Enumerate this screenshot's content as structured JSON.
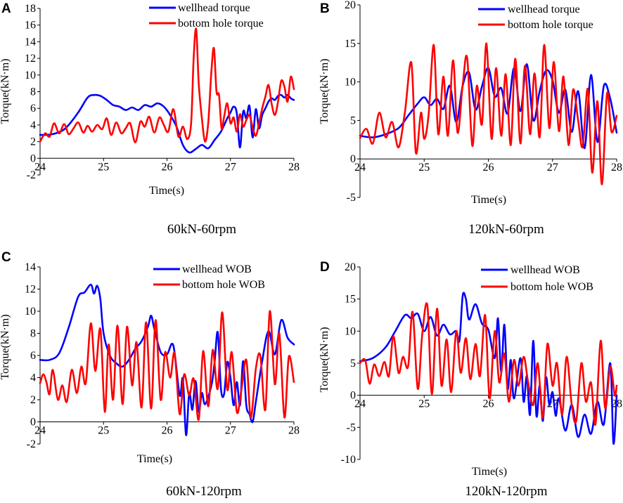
{
  "colors": {
    "series1": "#0000ff",
    "series2": "#ff0000",
    "axis": "#000000"
  },
  "chart_data": [
    {
      "panel": "A",
      "type": "line",
      "caption": "60kN-60rpm",
      "xlabel": "Time(s)",
      "ylabel": "Torque(kN·m)",
      "xlim": [
        24,
        28
      ],
      "ylim": [
        -2,
        18
      ],
      "xticks": [
        24,
        25,
        26,
        27,
        28
      ],
      "yticks": [
        -2,
        0,
        2,
        4,
        6,
        8,
        10,
        12,
        14,
        16,
        18
      ],
      "series": [
        {
          "name": "wellhead torque",
          "color": "#0000ff",
          "x": [
            24.0,
            24.2,
            24.4,
            24.6,
            24.75,
            24.85,
            24.95,
            25.05,
            25.15,
            25.25,
            25.35,
            25.45,
            25.55,
            25.65,
            25.75,
            25.85,
            25.95,
            26.05,
            26.15,
            26.25,
            26.35,
            26.45,
            26.55,
            26.65,
            26.75,
            26.85,
            26.95,
            27.0,
            27.05,
            27.1,
            27.15,
            27.2,
            27.25,
            27.3,
            27.35,
            27.4,
            27.45,
            27.5,
            27.55,
            27.6,
            27.65,
            27.7,
            27.75,
            27.8,
            27.85,
            27.9,
            27.95,
            28.0
          ],
          "y": [
            2.8,
            2.9,
            3.6,
            5.5,
            7.3,
            7.6,
            7.5,
            7.0,
            6.4,
            6.2,
            5.8,
            6.1,
            5.8,
            6.4,
            6.2,
            6.6,
            6.2,
            5.2,
            3.8,
            1.6,
            0.7,
            1.1,
            1.6,
            1.2,
            2.2,
            3.2,
            4.8,
            5.5,
            6.2,
            5.4,
            1.3,
            5.6,
            4.8,
            6.3,
            2.5,
            5.9,
            3.6,
            5.2,
            6.0,
            6.8,
            7.2,
            7.0,
            7.5,
            7.6,
            7.3,
            7.6,
            7.2,
            7.0
          ]
        },
        {
          "name": "bottom hole torque",
          "color": "#ff0000",
          "x": [
            24.0,
            24.08,
            24.15,
            24.22,
            24.3,
            24.38,
            24.45,
            24.52,
            24.6,
            24.68,
            24.75,
            24.82,
            24.9,
            24.98,
            25.05,
            25.12,
            25.2,
            25.28,
            25.35,
            25.42,
            25.5,
            25.58,
            25.65,
            25.72,
            25.8,
            25.88,
            25.95,
            26.02,
            26.1,
            26.18,
            26.25,
            26.32,
            26.38,
            26.42,
            26.46,
            26.5,
            26.55,
            26.6,
            26.65,
            26.7,
            26.74,
            26.78,
            26.82,
            26.86,
            26.9,
            26.95,
            27.0,
            27.05,
            27.1,
            27.15,
            27.2,
            27.25,
            27.3,
            27.35,
            27.4,
            27.45,
            27.5,
            27.55,
            27.6,
            27.65,
            27.7,
            27.75,
            27.8,
            27.85,
            27.9,
            27.95,
            28.0
          ],
          "y": [
            2.0,
            3.0,
            2.6,
            4.2,
            3.0,
            4.1,
            2.9,
            3.5,
            4.3,
            3.1,
            3.9,
            3.2,
            4.0,
            3.5,
            4.8,
            2.8,
            4.3,
            3.0,
            3.6,
            4.2,
            1.9,
            4.4,
            3.8,
            5.0,
            3.1,
            4.9,
            4.0,
            3.2,
            5.9,
            2.6,
            3.8,
            2.3,
            4.2,
            12.0,
            15.5,
            9.0,
            4.8,
            2.0,
            4.3,
            10.5,
            13.2,
            8.0,
            7.6,
            3.6,
            5.0,
            6.6,
            4.2,
            4.9,
            3.2,
            5.3,
            3.8,
            4.6,
            5.2,
            3.7,
            2.7,
            4.2,
            6.0,
            7.4,
            8.8,
            6.5,
            5.2,
            6.8,
            9.3,
            8.6,
            6.8,
            9.8,
            8.3
          ]
        }
      ]
    },
    {
      "panel": "B",
      "type": "line",
      "caption": "120kN-60rpm",
      "xlabel": "Time(s)",
      "ylabel": "Torque(kN·m)",
      "xlim": [
        24,
        28
      ],
      "ylim": [
        -5,
        20
      ],
      "xticks": [
        24,
        25,
        26,
        27,
        28
      ],
      "yticks": [
        -5,
        0,
        5,
        10,
        15,
        20
      ],
      "series": [
        {
          "name": "wellhead torque",
          "color": "#0000ff",
          "x": [
            24.0,
            24.2,
            24.4,
            24.6,
            24.75,
            24.9,
            25.0,
            25.1,
            25.2,
            25.3,
            25.4,
            25.5,
            25.6,
            25.7,
            25.8,
            25.9,
            26.0,
            26.1,
            26.2,
            26.3,
            26.4,
            26.5,
            26.6,
            26.7,
            26.8,
            26.9,
            27.0,
            27.1,
            27.2,
            27.3,
            27.4,
            27.5,
            27.6,
            27.7,
            27.8,
            27.9,
            28.0
          ],
          "y": [
            3.0,
            2.8,
            3.2,
            4.0,
            5.6,
            7.2,
            8.0,
            7.0,
            7.8,
            6.5,
            9.5,
            4.8,
            9.5,
            11.2,
            6.4,
            9.4,
            11.8,
            8.1,
            9.2,
            5.9,
            11.8,
            6.2,
            12.3,
            5.0,
            8.8,
            11.5,
            10.2,
            6.0,
            9.0,
            3.5,
            8.8,
            1.4,
            10.9,
            2.2,
            9.5,
            7.8,
            3.4
          ]
        },
        {
          "name": "bottom hole torque",
          "color": "#ff0000",
          "x": [
            24.0,
            24.1,
            24.2,
            24.3,
            24.4,
            24.5,
            24.6,
            24.7,
            24.8,
            24.87,
            24.95,
            25.0,
            25.07,
            25.15,
            25.22,
            25.3,
            25.37,
            25.45,
            25.52,
            25.6,
            25.67,
            25.75,
            25.82,
            25.9,
            25.97,
            26.05,
            26.12,
            26.2,
            26.27,
            26.35,
            26.42,
            26.5,
            26.57,
            26.65,
            26.72,
            26.8,
            26.87,
            26.95,
            27.02,
            27.1,
            27.17,
            27.25,
            27.32,
            27.4,
            27.47,
            27.55,
            27.62,
            27.7,
            27.77,
            27.85,
            27.92,
            28.0
          ],
          "y": [
            2.7,
            3.9,
            2.0,
            6.0,
            2.8,
            4.8,
            1.5,
            6.1,
            12.5,
            0.8,
            6.0,
            2.6,
            5.8,
            14.8,
            3.2,
            10.7,
            3.0,
            12.8,
            3.4,
            9.6,
            13.1,
            1.7,
            9.5,
            4.5,
            15.0,
            2.6,
            11.8,
            3.0,
            11.0,
            1.8,
            13.0,
            2.0,
            12.1,
            3.2,
            11.1,
            2.8,
            14.8,
            4.0,
            12.6,
            3.6,
            10.7,
            1.8,
            9.0,
            5.0,
            1.6,
            9.1,
            -1.8,
            7.5,
            -3.3,
            8.5,
            3.5,
            5.6
          ]
        }
      ]
    },
    {
      "panel": "C",
      "type": "line",
      "caption": "60kN-120rpm",
      "xlabel": "Time(s)",
      "ylabel": "Torque(kN·m)",
      "xlim": [
        24,
        28
      ],
      "ylim": [
        -2,
        14
      ],
      "xticks": [
        24,
        25,
        26,
        27,
        28
      ],
      "yticks": [
        -2,
        0,
        2,
        4,
        6,
        8,
        10,
        12,
        14
      ],
      "series": [
        {
          "name": "wellhead WOB",
          "color": "#0000ff",
          "x": [
            24.0,
            24.15,
            24.3,
            24.45,
            24.6,
            24.7,
            24.8,
            24.85,
            24.9,
            24.95,
            25.0,
            25.1,
            25.2,
            25.3,
            25.4,
            25.5,
            25.6,
            25.7,
            25.75,
            25.8,
            25.9,
            26.0,
            26.1,
            26.2,
            26.25,
            26.3,
            26.35,
            26.4,
            26.45,
            26.5,
            26.55,
            26.6,
            26.7,
            26.75,
            26.8,
            26.85,
            26.9,
            26.95,
            27.0,
            27.05,
            27.1,
            27.15,
            27.2,
            27.25,
            27.3,
            27.35,
            27.4,
            27.5,
            27.6,
            27.7,
            27.8,
            27.9,
            28.0
          ],
          "y": [
            5.6,
            5.6,
            6.2,
            8.5,
            11.3,
            11.7,
            12.4,
            11.6,
            12.3,
            11.1,
            8.0,
            6.0,
            5.3,
            5.0,
            5.6,
            6.6,
            7.3,
            8.6,
            9.6,
            8.4,
            6.3,
            6.1,
            6.9,
            2.4,
            3.9,
            -1.2,
            2.6,
            1.1,
            3.7,
            0.9,
            2.6,
            1.6,
            3.3,
            5.4,
            8.1,
            3.0,
            2.5,
            5.4,
            4.0,
            1.5,
            3.6,
            1.5,
            5.5,
            1.5,
            0.7,
            0.0,
            1.8,
            5.5,
            8.2,
            6.1,
            9.2,
            7.6,
            7.0
          ]
        },
        {
          "name": "bottom hole WOB",
          "color": "#ff0000",
          "x": [
            24.0,
            24.05,
            24.1,
            24.15,
            24.2,
            24.28,
            24.35,
            24.42,
            24.5,
            24.58,
            24.65,
            24.72,
            24.8,
            24.87,
            24.95,
            25.02,
            25.08,
            25.15,
            25.22,
            25.3,
            25.37,
            25.45,
            25.52,
            25.6,
            25.67,
            25.75,
            25.82,
            25.9,
            25.97,
            26.05,
            26.12,
            26.2,
            26.27,
            26.35,
            26.42,
            26.5,
            26.57,
            26.65,
            26.72,
            26.8,
            26.87,
            26.95,
            27.02,
            27.1,
            27.17,
            27.25,
            27.32,
            27.4,
            27.47,
            27.55,
            27.62,
            27.7,
            27.77,
            27.85,
            27.92,
            28.0
          ],
          "y": [
            3.5,
            4.3,
            3.6,
            2.5,
            4.7,
            2.0,
            3.3,
            1.8,
            4.7,
            2.6,
            5.0,
            3.5,
            8.9,
            4.6,
            8.4,
            0.9,
            7.0,
            2.0,
            8.7,
            1.6,
            8.6,
            3.3,
            7.2,
            1.3,
            9.0,
            1.2,
            9.2,
            2.0,
            6.3,
            4.0,
            6.2,
            0.7,
            4.3,
            2.4,
            3.9,
            0.2,
            6.4,
            1.4,
            6.5,
            3.0,
            9.9,
            2.9,
            6.3,
            0.9,
            2.8,
            5.6,
            0.4,
            4.8,
            6.0,
            1.1,
            10.0,
            3.4,
            8.0,
            0.4,
            5.9,
            3.6
          ]
        }
      ]
    },
    {
      "panel": "D",
      "type": "line",
      "caption": "120kN-120rpm",
      "xlabel": "Time(s)",
      "ylabel": "Torque(kN·m)",
      "xlim": [
        24,
        28
      ],
      "ylim": [
        -10,
        20
      ],
      "xticks": [
        24,
        25,
        26,
        27,
        28
      ],
      "yticks": [
        -10,
        -5,
        0,
        5,
        10,
        15,
        20
      ],
      "series": [
        {
          "name": "wellhead WOB",
          "color": "#0000ff",
          "x": [
            24.0,
            24.2,
            24.4,
            24.55,
            24.7,
            24.8,
            24.9,
            25.0,
            25.1,
            25.2,
            25.3,
            25.4,
            25.5,
            25.55,
            25.6,
            25.65,
            25.7,
            25.8,
            25.9,
            26.0,
            26.1,
            26.15,
            26.2,
            26.25,
            26.3,
            26.35,
            26.4,
            26.5,
            26.55,
            26.6,
            26.65,
            26.7,
            26.75,
            26.8,
            26.85,
            26.9,
            26.95,
            27.0,
            27.05,
            27.1,
            27.2,
            27.3,
            27.4,
            27.5,
            27.6,
            27.7,
            27.8,
            27.9,
            27.95,
            28.0
          ],
          "y": [
            5.3,
            5.8,
            7.5,
            10.0,
            12.5,
            12.0,
            12.7,
            10.0,
            12.2,
            9.3,
            11.0,
            9.5,
            10.0,
            8.5,
            15.5,
            15.0,
            11.8,
            14.2,
            11.2,
            10.2,
            5.8,
            12.0,
            3.6,
            11.0,
            1.0,
            5.5,
            -0.5,
            5.8,
            -1.0,
            3.0,
            -3.0,
            8.5,
            -3.2,
            1.5,
            -4.0,
            2.8,
            -1.5,
            0.5,
            -3.2,
            -0.5,
            -5.5,
            -1.5,
            -6.5,
            -3.0,
            -6.0,
            -1.0,
            -4.5,
            5.0,
            -7.5,
            0.0
          ]
        },
        {
          "name": "bottom hole WOB",
          "color": "#ff0000",
          "x": [
            24.0,
            24.08,
            24.15,
            24.22,
            24.3,
            24.38,
            24.45,
            24.52,
            24.6,
            24.67,
            24.75,
            24.82,
            24.9,
            24.97,
            25.05,
            25.12,
            25.2,
            25.27,
            25.35,
            25.42,
            25.5,
            25.57,
            25.65,
            25.72,
            25.8,
            25.87,
            25.95,
            26.02,
            26.1,
            26.17,
            26.25,
            26.32,
            26.4,
            26.47,
            26.55,
            26.62,
            26.7,
            26.77,
            26.85,
            26.92,
            27.0,
            27.07,
            27.15,
            27.22,
            27.3,
            27.37,
            27.45,
            27.52,
            27.6,
            27.67,
            27.75,
            27.82,
            27.9,
            27.97,
            28.0
          ],
          "y": [
            5.0,
            5.5,
            1.8,
            4.8,
            3.0,
            5.2,
            3.0,
            9.2,
            3.5,
            6.0,
            4.5,
            13.0,
            1.0,
            9.5,
            14.0,
            0.2,
            13.5,
            1.5,
            8.7,
            0.5,
            10.0,
            3.5,
            8.9,
            2.5,
            8.0,
            3.0,
            12.5,
            -0.5,
            10.0,
            2.0,
            6.5,
            -1.0,
            5.5,
            1.5,
            6.0,
            2.0,
            -1.5,
            5.0,
            -3.5,
            8.0,
            1.5,
            5.0,
            -3.0,
            6.0,
            -1.5,
            -4.0,
            5.0,
            -1.0,
            2.0,
            -4.5,
            8.5,
            -2.0,
            4.5,
            0.0,
            1.5
          ]
        }
      ]
    }
  ]
}
